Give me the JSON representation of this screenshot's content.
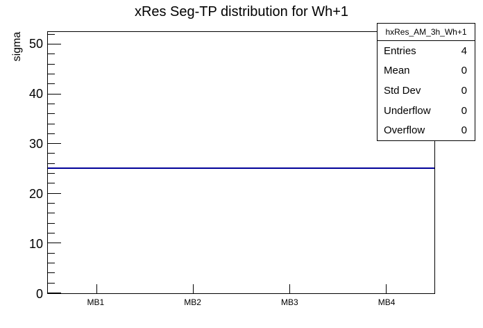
{
  "chart_data": {
    "type": "line",
    "title": "xRes Seg-TP distribution for Wh+1",
    "xlabel": "",
    "ylabel": "sigma",
    "categories": [
      "MB1",
      "MB2",
      "MB3",
      "MB4"
    ],
    "series": [
      {
        "name": "hxRes_AM_3h_Wh+1",
        "values": [
          25,
          25,
          25,
          25
        ]
      }
    ],
    "ylim": [
      0,
      52.5
    ],
    "y_major_ticks": [
      0,
      10,
      20,
      30,
      40,
      50
    ],
    "y_minor_step": 2,
    "grid": false,
    "legend_position": "none",
    "line_color": "#000099",
    "axis_color": "#000000",
    "background_color": "#ffffff"
  },
  "stats_box": {
    "header": "hxRes_AM_3h_Wh+1",
    "rows": [
      {
        "label": "Entries",
        "value": "4"
      },
      {
        "label": "Mean",
        "value": "0"
      },
      {
        "label": "Std Dev",
        "value": "0"
      },
      {
        "label": "Underflow",
        "value": "0"
      },
      {
        "label": "Overflow",
        "value": "0"
      }
    ]
  }
}
